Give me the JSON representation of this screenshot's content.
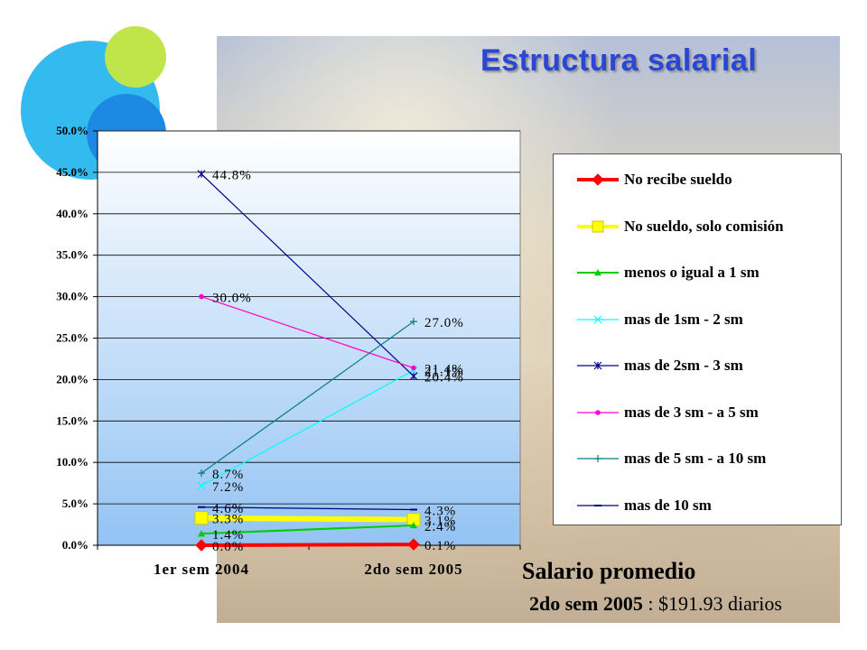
{
  "title": "Estructura salarial",
  "colors": {
    "title": "#2a46d6",
    "circle_big": "#33bbf0",
    "circle_small": "#bfe54a",
    "circle_dark": "#1e88e5",
    "plot_top": "#ffffff",
    "plot_bottom": "#93c3f3"
  },
  "chart_data": {
    "type": "line",
    "categories": [
      "1er sem 2004",
      "2do sem 2005"
    ],
    "ylim": [
      0,
      50
    ],
    "yticks": [
      "0.0%",
      "5.0%",
      "10.0%",
      "15.0%",
      "20.0%",
      "25.0%",
      "30.0%",
      "35.0%",
      "40.0%",
      "45.0%",
      "50.0%"
    ],
    "grid": true,
    "legend_position": "right",
    "series": [
      {
        "name": "No recibe sueldo",
        "values": [
          0.0,
          0.1
        ],
        "labels": [
          "0.0%",
          "0.1%"
        ],
        "color": "#ff0000",
        "marker": "diamond"
      },
      {
        "name": "No sueldo, solo comisión",
        "values": [
          3.3,
          3.1
        ],
        "labels": [
          "3.3%",
          "3.1%"
        ],
        "color": "#ffff00",
        "marker": "square"
      },
      {
        "name": "menos o igual a 1 sm",
        "values": [
          1.4,
          2.4
        ],
        "labels": [
          "1.4%",
          "2.4%"
        ],
        "color": "#00cc00",
        "marker": "triangle"
      },
      {
        "name": "mas de 1sm - 2 sm",
        "values": [
          7.2,
          21.1
        ],
        "labels": [
          "7.2%",
          "21.1%"
        ],
        "color": "#00ffff",
        "marker": "x"
      },
      {
        "name": "mas de 2sm - 3 sm",
        "values": [
          44.8,
          20.4
        ],
        "labels": [
          "44.8%",
          "20.4%"
        ],
        "color": "#00008b",
        "marker": "star"
      },
      {
        "name": "mas de 3 sm - a 5 sm",
        "values": [
          30.0,
          21.4
        ],
        "labels": [
          "30.0%",
          "21.4%"
        ],
        "color": "#ff00cc",
        "marker": "circle"
      },
      {
        "name": "mas de 5 sm - a 10 sm",
        "values": [
          8.7,
          27.0
        ],
        "labels": [
          "8.7%",
          "27.0%"
        ],
        "color": "#008080",
        "marker": "plus"
      },
      {
        "name": "mas de 10 sm",
        "values": [
          4.6,
          4.3
        ],
        "labels": [
          "4.6%",
          "4.3%"
        ],
        "color": "#000080",
        "marker": "dash"
      }
    ]
  },
  "salary": {
    "heading": "Salario promedio",
    "period": "2do sem 2005",
    "separator": " : ",
    "amount": "$191.93 diarios"
  }
}
